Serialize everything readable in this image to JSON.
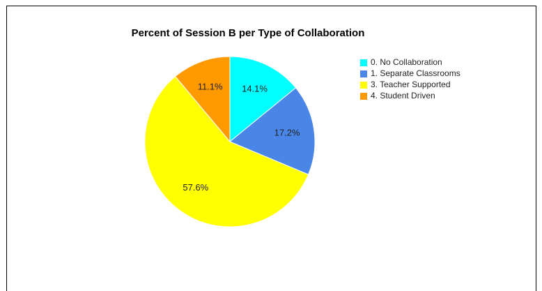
{
  "chart_data": {
    "type": "pie",
    "title": "Percent of Session B per Type of Collaboration",
    "categories": [
      "0. No Collaboration",
      "1. Separate Classrooms",
      "3. Teacher Supported",
      "4. Student Driven"
    ],
    "values": [
      14.1,
      17.2,
      57.6,
      11.1
    ],
    "value_labels": [
      "14.1%",
      "17.2%",
      "57.6%",
      "11.1%"
    ],
    "colors": [
      "#00ffff",
      "#4a86e8",
      "#ffff00",
      "#ff9900"
    ],
    "legend": "right"
  }
}
